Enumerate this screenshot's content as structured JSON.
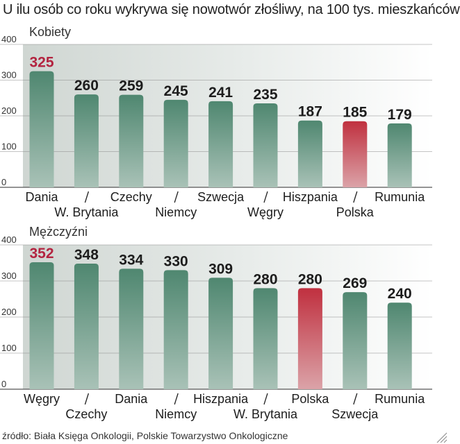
{
  "title": "U ilu osób co roku wykrywa się nowotwór złośliwy, na 100 tys. mieszkańców",
  "source": "źródło: Biała Księga Onkologii, Polskie Towarzystwo Onkologiczne",
  "colors": {
    "bar": "#4f8770",
    "highlight_bar": "#c0303f",
    "highlight_label": "#b32440",
    "label": "#1d1d1d"
  },
  "chart_data": [
    {
      "type": "bar",
      "title": "Kobiety",
      "ylim": [
        0,
        400
      ],
      "yticks": [
        0,
        100,
        200,
        300,
        400
      ],
      "grid": true,
      "categories": [
        "Dania",
        "W. Brytania",
        "Czechy",
        "Niemcy",
        "Szwecja",
        "Węgry",
        "Hiszpania",
        "Polska",
        "Rumunia"
      ],
      "values": [
        325,
        260,
        259,
        245,
        241,
        235,
        187,
        185,
        179
      ],
      "highlight_value_label": "Dania",
      "highlight_bar": "Polska"
    },
    {
      "type": "bar",
      "title": "Mężczyźni",
      "ylim": [
        0,
        400
      ],
      "yticks": [
        0,
        100,
        200,
        300,
        400
      ],
      "grid": true,
      "categories": [
        "Węgry",
        "Czechy",
        "Dania",
        "Niemcy",
        "Hiszpania",
        "W. Brytania",
        "Polska",
        "Szwecja",
        "Rumunia"
      ],
      "values": [
        352,
        348,
        334,
        330,
        309,
        280,
        280,
        269,
        240
      ],
      "highlight_value_label": "Węgry",
      "highlight_bar": "Polska"
    }
  ]
}
